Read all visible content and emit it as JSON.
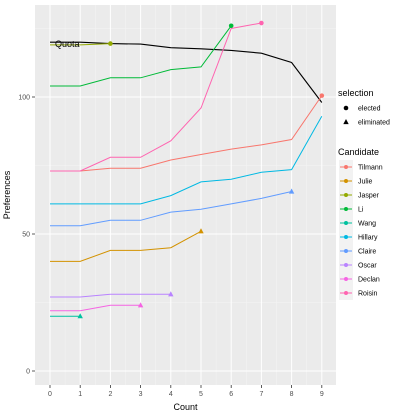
{
  "chart_data": {
    "type": "line",
    "title": "",
    "xlabel": "Count",
    "ylabel": "Preferences",
    "xlim": [
      0,
      9
    ],
    "ylim": [
      0,
      130
    ],
    "x_ticks": [
      0,
      1,
      2,
      3,
      4,
      5,
      6,
      7,
      8,
      9
    ],
    "y_ticks": [
      0,
      50,
      100
    ],
    "grid": true,
    "legend_position": "right",
    "quota": {
      "label": "Quota",
      "color": "#000000",
      "points": [
        [
          0,
          120
        ],
        [
          1,
          120
        ],
        [
          2,
          119.5
        ],
        [
          3,
          119.3
        ],
        [
          4,
          118
        ],
        [
          5,
          117.6
        ],
        [
          6,
          117
        ],
        [
          7,
          116
        ],
        [
          8,
          112.6
        ],
        [
          9,
          98
        ]
      ]
    },
    "shape_legend": {
      "title": "selection",
      "items": [
        {
          "label": "elected",
          "shape": "circle"
        },
        {
          "label": "eliminated",
          "shape": "triangle"
        }
      ]
    },
    "series_legend_title": "Candidate",
    "series": [
      {
        "name": "Tilmann",
        "color": "#F8766D",
        "points": [
          [
            0,
            73
          ],
          [
            1,
            73
          ],
          [
            2,
            74
          ],
          [
            3,
            74
          ],
          [
            4,
            77
          ],
          [
            5,
            79
          ],
          [
            6,
            81
          ],
          [
            7,
            82.5
          ],
          [
            8,
            84.5
          ],
          [
            9,
            100.5
          ]
        ],
        "end": "elected"
      },
      {
        "name": "Julie",
        "color": "#D39200",
        "points": [
          [
            0,
            40
          ],
          [
            1,
            40
          ],
          [
            2,
            44
          ],
          [
            3,
            44
          ],
          [
            4,
            45
          ],
          [
            5,
            51
          ]
        ],
        "end": "eliminated"
      },
      {
        "name": "Jasper",
        "color": "#93AA00",
        "points": [
          [
            0,
            119
          ],
          [
            1,
            119
          ],
          [
            2,
            119.5
          ]
        ],
        "end": "elected"
      },
      {
        "name": "Li",
        "color": "#00BA38",
        "points": [
          [
            0,
            104
          ],
          [
            1,
            104
          ],
          [
            2,
            107
          ],
          [
            3,
            107
          ],
          [
            4,
            110
          ],
          [
            5,
            111
          ],
          [
            6,
            126
          ]
        ],
        "end": "elected"
      },
      {
        "name": "Wang",
        "color": "#00C19F",
        "points": [
          [
            0,
            20
          ],
          [
            1,
            20
          ]
        ],
        "end": "eliminated"
      },
      {
        "name": "Hillary",
        "color": "#00B9E3",
        "points": [
          [
            0,
            61
          ],
          [
            1,
            61
          ],
          [
            2,
            61
          ],
          [
            3,
            61
          ],
          [
            4,
            64
          ],
          [
            5,
            69
          ],
          [
            6,
            70
          ],
          [
            7,
            72.5
          ],
          [
            8,
            73.5
          ],
          [
            9,
            93
          ]
        ],
        "end": "none"
      },
      {
        "name": "Claire",
        "color": "#619CFF",
        "points": [
          [
            0,
            53
          ],
          [
            1,
            53
          ],
          [
            2,
            55
          ],
          [
            3,
            55
          ],
          [
            4,
            58
          ],
          [
            5,
            59
          ],
          [
            6,
            61
          ],
          [
            7,
            63
          ],
          [
            8,
            65.5
          ]
        ],
        "end": "eliminated"
      },
      {
        "name": "Oscar",
        "color": "#B983FF",
        "points": [
          [
            0,
            27
          ],
          [
            1,
            27
          ],
          [
            2,
            28
          ],
          [
            3,
            28
          ],
          [
            4,
            28
          ]
        ],
        "end": "eliminated"
      },
      {
        "name": "Declan",
        "color": "#F564E3",
        "points": [
          [
            0,
            22
          ],
          [
            1,
            22
          ],
          [
            2,
            24
          ],
          [
            3,
            24
          ]
        ],
        "end": "eliminated"
      },
      {
        "name": "Roisin",
        "color": "#FF64B0",
        "points": [
          [
            0,
            73
          ],
          [
            1,
            73
          ],
          [
            2,
            78
          ],
          [
            3,
            78
          ],
          [
            4,
            84
          ],
          [
            5,
            96
          ],
          [
            6,
            125
          ],
          [
            7,
            127
          ]
        ],
        "end": "elected"
      }
    ]
  }
}
